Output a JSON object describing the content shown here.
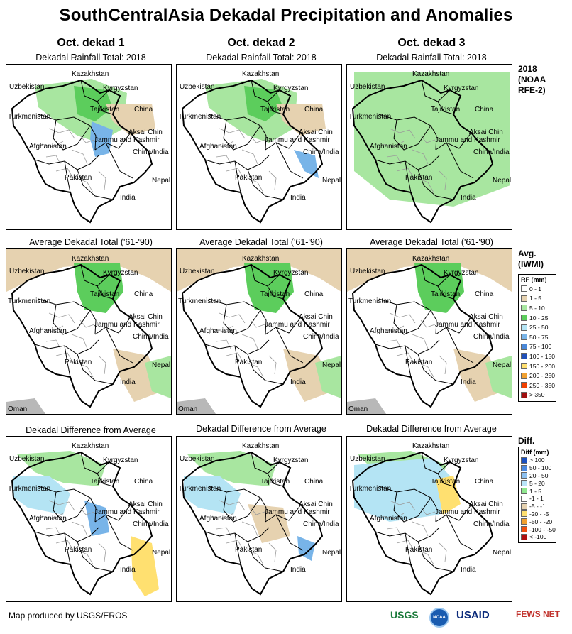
{
  "title": "SouthCentralAsia Dekadal Precipitation and Anomalies",
  "columns": [
    "Oct. dekad 1",
    "Oct. dekad 2",
    "Oct. dekad 3"
  ],
  "row_titles": {
    "rainfall": "Dekadal Rainfall Total: 2018",
    "average": "Average Dekadal Total ('61-'90)",
    "difference": "Dekadal Difference from Average"
  },
  "row_labels": {
    "rainfall": [
      "2018",
      "(NOAA",
      "RFE-2)"
    ],
    "average": [
      "Avg.",
      "(IWMI)"
    ],
    "difference": [
      "Diff."
    ]
  },
  "map_labels": {
    "kazakhstan": "Kazakhstan",
    "uzbekistan": "Uzbekistan",
    "kyrgyzstan": "Kyrgyzstan",
    "tajikistan": "Tajikistan",
    "turkmenistan": "Turkmenistan",
    "china": "China",
    "afghanistan": "Afghanistan",
    "aksai_chin": "Aksai Chin",
    "jammu_kashmir": "Jammu and Kashmir",
    "china_india": "China/India",
    "pakistan": "Pakistan",
    "nepal": "Nepal",
    "india": "India",
    "oman": "Oman"
  },
  "rf_legend": {
    "title": "RF (mm)",
    "items": [
      {
        "label": "0 - 1",
        "color": "#ffffff"
      },
      {
        "label": "1 - 5",
        "color": "#e6d2b0"
      },
      {
        "label": "5 - 10",
        "color": "#a8e6a0"
      },
      {
        "label": "10 - 25",
        "color": "#5ccd5c"
      },
      {
        "label": "25 - 50",
        "color": "#b4e4f4"
      },
      {
        "label": "50 - 75",
        "color": "#78b4e8"
      },
      {
        "label": "75 - 100",
        "color": "#4a88d8"
      },
      {
        "label": "100 - 150",
        "color": "#2050b8"
      },
      {
        "label": "150 - 200",
        "color": "#ffe070"
      },
      {
        "label": "200 - 250",
        "color": "#f0a030"
      },
      {
        "label": "250 - 350",
        "color": "#f04000"
      },
      {
        "label": "> 350",
        "color": "#a01010"
      }
    ]
  },
  "diff_legend": {
    "title": "Diff (mm)",
    "items": [
      {
        "label": "> 100",
        "color": "#1a50c0"
      },
      {
        "label": "50 - 100",
        "color": "#4a88e0"
      },
      {
        "label": "20 - 50",
        "color": "#8cc0f0"
      },
      {
        "label": "5 - 20",
        "color": "#b8e4f8"
      },
      {
        "label": "1 - 5",
        "color": "#8ee68e"
      },
      {
        "label": "-1 - 1",
        "color": "#ffffff"
      },
      {
        "label": "-5 - -1",
        "color": "#e6d2b0"
      },
      {
        "label": "-20 - -5",
        "color": "#ffe070"
      },
      {
        "label": "-50 - -20",
        "color": "#f0a030"
      },
      {
        "label": "-100 - -50",
        "color": "#f05010"
      },
      {
        "label": "< -100",
        "color": "#b01010"
      }
    ]
  },
  "footer": "Map produced by USGS/EROS",
  "logos": [
    "USGS",
    "NOAA",
    "USAID",
    "FEWS NET"
  ],
  "colors": {
    "beige": "#e6d2b0",
    "green": "#5ccd5c",
    "lightgreen": "#a8e6a0",
    "lightblue": "#b4e4f4",
    "blue": "#78b4e8",
    "yellow": "#ffe070",
    "grey": "#b8b8b8"
  }
}
